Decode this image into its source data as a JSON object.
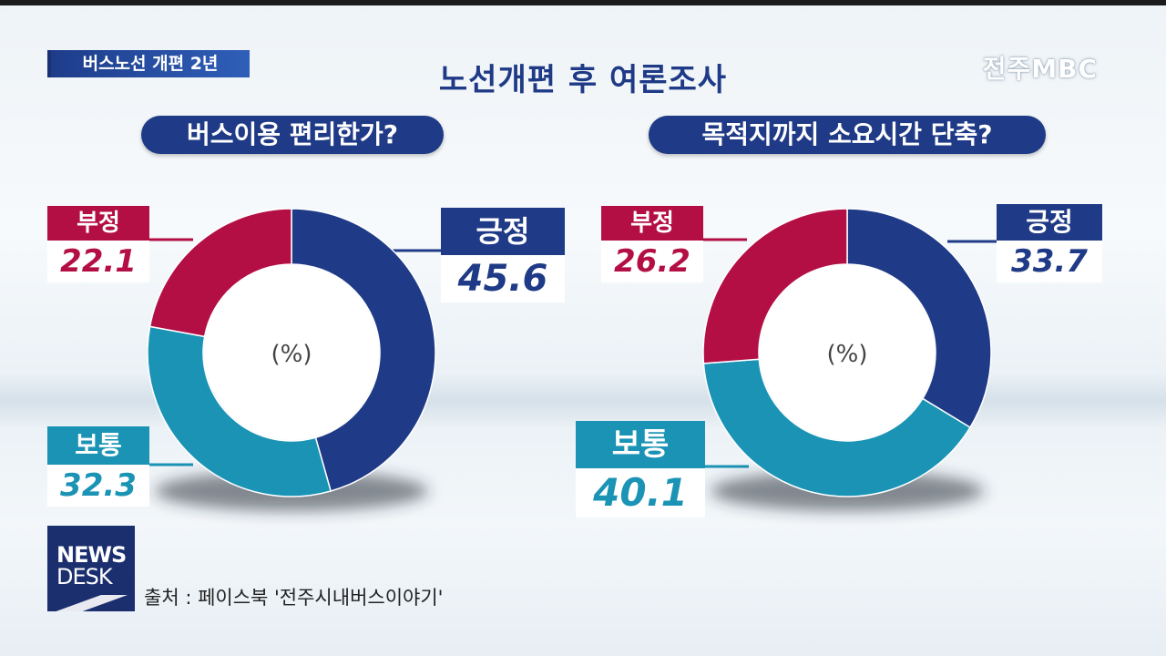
{
  "header": {
    "tag": "버스노선 개편 2년",
    "title": "노선개편 후 여론조사",
    "logo": "전주MBC"
  },
  "colors": {
    "positive": "#1f3a86",
    "normal": "#1a93b5",
    "negative": "#b40f45"
  },
  "chart_data": [
    {
      "type": "pie",
      "variant": "donut",
      "title": "버스이용 편리한가?",
      "center_label": "(%)",
      "categories": [
        "긍정",
        "보통",
        "부정"
      ],
      "values": [
        45.6,
        32.3,
        22.1
      ],
      "labels": [
        "45.6",
        "32.3",
        "22.1"
      ]
    },
    {
      "type": "pie",
      "variant": "donut",
      "title": "목적지까지 소요시간 단축?",
      "center_label": "(%)",
      "categories": [
        "긍정",
        "보통",
        "부정"
      ],
      "values": [
        33.7,
        40.1,
        26.2
      ],
      "labels": [
        "33.7",
        "40.1",
        "26.2"
      ]
    }
  ],
  "footer": {
    "badge_line1": "NEWS",
    "badge_line2": "DESK",
    "source": "출처 : 페이스북 '전주시내버스이야기'"
  }
}
